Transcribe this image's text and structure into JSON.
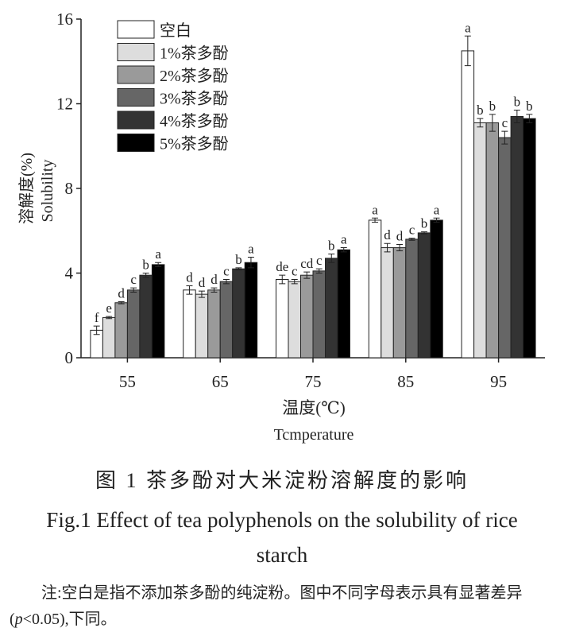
{
  "chart_data": {
    "type": "bar",
    "ylabel": [
      "溶解度(%)",
      "Solubility"
    ],
    "xlabel": [
      "温度(℃)",
      "Tcmperature"
    ],
    "categories": [
      "55",
      "65",
      "75",
      "85",
      "95"
    ],
    "ylim": [
      0,
      16
    ],
    "yticks": [
      0,
      4,
      8,
      12,
      16
    ],
    "series": [
      {
        "name": "空白",
        "color": "#ffffff",
        "values": [
          1.3,
          3.2,
          3.7,
          6.5,
          14.5
        ],
        "errors": [
          0.2,
          0.2,
          0.2,
          0.1,
          0.7
        ],
        "letters": [
          "f",
          "d",
          "de",
          "a",
          "a"
        ]
      },
      {
        "name": "1%茶多酚",
        "color": "#dddddd",
        "values": [
          1.9,
          3.0,
          3.6,
          5.2,
          11.1
        ],
        "errors": [
          0.05,
          0.15,
          0.1,
          0.2,
          0.2
        ],
        "letters": [
          "e",
          "d",
          "c",
          "d",
          "b"
        ]
      },
      {
        "name": "2%茶多酚",
        "color": "#9a9a9a",
        "values": [
          2.6,
          3.2,
          3.9,
          5.2,
          11.1
        ],
        "errors": [
          0.05,
          0.1,
          0.15,
          0.15,
          0.4
        ],
        "letters": [
          "d",
          "d",
          "cd",
          "d",
          "b"
        ]
      },
      {
        "name": "3%茶多酚",
        "color": "#666666",
        "values": [
          3.2,
          3.6,
          4.1,
          5.6,
          10.4
        ],
        "errors": [
          0.1,
          0.1,
          0.1,
          0.05,
          0.3
        ],
        "letters": [
          "c",
          "c",
          "c",
          "c",
          "c"
        ]
      },
      {
        "name": "4%茶多酚",
        "color": "#333333",
        "values": [
          3.9,
          4.2,
          4.7,
          5.9,
          11.4
        ],
        "errors": [
          0.1,
          0.05,
          0.2,
          0.05,
          0.3
        ],
        "letters": [
          "b",
          "b",
          "b",
          "b",
          "b"
        ]
      },
      {
        "name": "5%茶多酚",
        "color": "#000000",
        "values": [
          4.4,
          4.5,
          5.1,
          6.5,
          11.3
        ],
        "errors": [
          0.1,
          0.25,
          0.1,
          0.1,
          0.2
        ],
        "letters": [
          "a",
          "a",
          "a",
          "a",
          "b"
        ]
      }
    ]
  },
  "caption": {
    "cn": "图 1  茶多酚对大米淀粉溶解度的影响",
    "en": "Fig.1 Effect of tea polyphenols on the solubility of rice starch"
  },
  "note": [
    "注:空白是指不添加茶多酚的纯淀粉。图中不同字母表示具有显著差异(",
    "p",
    "<0.05),下同。"
  ]
}
